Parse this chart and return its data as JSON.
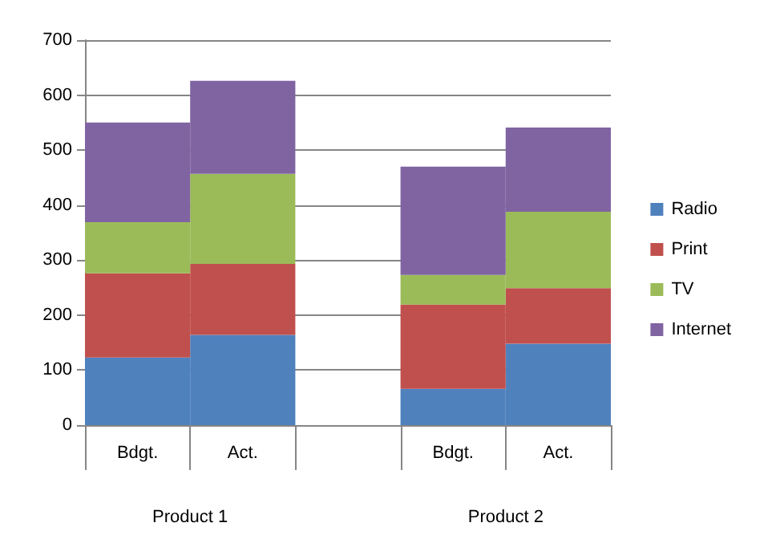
{
  "chart_data": {
    "type": "bar",
    "stacked": true,
    "categories": [
      "Bdgt.",
      "Act.",
      null,
      "Bdgt.",
      "Act."
    ],
    "series": [
      {
        "name": "Radio",
        "color": "#4f81bd",
        "values": [
          123,
          164,
          null,
          66,
          148
        ]
      },
      {
        "name": "Print",
        "color": "#c0504d",
        "values": [
          153,
          129,
          null,
          153,
          101
        ]
      },
      {
        "name": "TV",
        "color": "#9bbb59",
        "values": [
          93,
          164,
          null,
          54,
          139
        ]
      },
      {
        "name": "Internet",
        "color": "#8064a2",
        "values": [
          181,
          169,
          null,
          197,
          153
        ]
      }
    ],
    "annotations": [
      "Product 1",
      "Product 2"
    ],
    "ylim": [
      0,
      700
    ],
    "yticks": [
      0,
      100,
      200,
      300,
      400,
      500,
      600,
      700
    ],
    "grid": "y",
    "legend": "right"
  }
}
